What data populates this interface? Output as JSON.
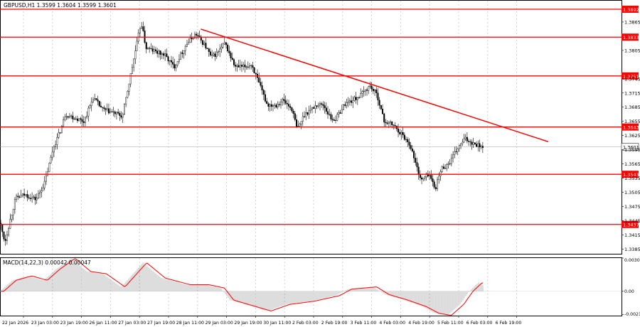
{
  "header": {
    "symbol_info": "GBPUSD,H1  1.3599 1.3604 1.3599 1.3601"
  },
  "colors": {
    "level_line": "#ff0000",
    "trend_line": "#ff0000",
    "candle": "#000000",
    "grid": "#c8c8c8",
    "macd_hist": "#b4b4b4",
    "macd_signal": "#ff0000",
    "price_tag": "#ff0000",
    "bid_tag": "#ffffff"
  },
  "chart_data": [
    {
      "type": "candlestick",
      "title": "",
      "ylim": [
        1.3375,
        1.391
      ],
      "y_ticks": [
        "1.3865",
        "1.3805",
        "1.3745",
        "1.3715",
        "1.3685",
        "1.3655",
        "1.3625",
        "1.3595",
        "1.3565",
        "1.3535",
        "1.3505",
        "1.3475",
        "1.3445",
        "1.3415",
        "1.3385"
      ],
      "x_labels": [
        "22 Jan 2026",
        "23 Jan 03:00",
        "23 Jan 19:00",
        "26 Jan 11:00",
        "27 Jan 03:00",
        "27 Jan 19:00",
        "28 Jan 11:00",
        "29 Jan 03:00",
        "29 Jan 19:00",
        "30 Jan 11:00",
        "2 Feb 03:00",
        "2 Feb 19:00",
        "3 Feb 11:00",
        "4 Feb 03:00",
        "4 Feb 19:00",
        "5 Feb 11:00",
        "6 Feb 03:00",
        "6 Feb 19:00"
      ],
      "levels": [
        {
          "value": 1.3892,
          "label": "1.3892"
        },
        {
          "value": 1.3833,
          "label": "1.3833"
        },
        {
          "value": 1.3751,
          "label": "1.3751"
        },
        {
          "value": 1.3643,
          "label": "1.3643"
        },
        {
          "value": 1.3543,
          "label": "1.3543"
        },
        {
          "value": 1.3437,
          "label": "1.3437"
        }
      ],
      "current_price": {
        "value": 1.3601,
        "label": "1.3601"
      },
      "trendline": {
        "start": [
          0.323,
          1.385
        ],
        "end": [
          0.882,
          1.3612
        ]
      },
      "path_anchors": [
        [
          0.0,
          1.344
        ],
        [
          0.008,
          1.34
        ],
        [
          0.016,
          1.3445
        ],
        [
          0.025,
          1.3492
        ],
        [
          0.04,
          1.35
        ],
        [
          0.058,
          1.349
        ],
        [
          0.072,
          1.3525
        ],
        [
          0.086,
          1.36
        ],
        [
          0.098,
          1.3638
        ],
        [
          0.105,
          1.367
        ],
        [
          0.125,
          1.366
        ],
        [
          0.135,
          1.3655
        ],
        [
          0.15,
          1.3705
        ],
        [
          0.165,
          1.368
        ],
        [
          0.185,
          1.3672
        ],
        [
          0.197,
          1.3665
        ],
        [
          0.215,
          1.3785
        ],
        [
          0.227,
          1.3865
        ],
        [
          0.235,
          1.381
        ],
        [
          0.255,
          1.38
        ],
        [
          0.265,
          1.3795
        ],
        [
          0.28,
          1.377
        ],
        [
          0.3,
          1.3818
        ],
        [
          0.315,
          1.384
        ],
        [
          0.33,
          1.3815
        ],
        [
          0.34,
          1.379
        ],
        [
          0.35,
          1.38
        ],
        [
          0.362,
          1.382
        ],
        [
          0.378,
          1.377
        ],
        [
          0.392,
          1.377
        ],
        [
          0.405,
          1.3775
        ],
        [
          0.418,
          1.373
        ],
        [
          0.43,
          1.369
        ],
        [
          0.445,
          1.369
        ],
        [
          0.455,
          1.37
        ],
        [
          0.47,
          1.368
        ],
        [
          0.478,
          1.3638
        ],
        [
          0.49,
          1.367
        ],
        [
          0.51,
          1.369
        ],
        [
          0.52,
          1.369
        ],
        [
          0.533,
          1.366
        ],
        [
          0.54,
          1.366
        ],
        [
          0.555,
          1.3692
        ],
        [
          0.568,
          1.37
        ],
        [
          0.58,
          1.371
        ],
        [
          0.595,
          1.373
        ],
        [
          0.607,
          1.371
        ],
        [
          0.618,
          1.3655
        ],
        [
          0.632,
          1.3648
        ],
        [
          0.645,
          1.363
        ],
        [
          0.66,
          1.3605
        ],
        [
          0.67,
          1.356
        ],
        [
          0.678,
          1.353
        ],
        [
          0.69,
          1.3545
        ],
        [
          0.7,
          1.3512
        ],
        [
          0.71,
          1.3555
        ],
        [
          0.722,
          1.3565
        ],
        [
          0.735,
          1.3595
        ],
        [
          0.748,
          1.3618
        ],
        [
          0.76,
          1.361
        ],
        [
          0.772,
          1.3604
        ],
        [
          0.778,
          1.3601
        ]
      ]
    },
    {
      "type": "histogram",
      "title": "MACD(14,22,3) 0.00042 0.00047",
      "ylim": [
        -0.00222,
        0.00303
      ],
      "y_ticks": [
        {
          "value": 0.00303,
          "label": "0.00303"
        },
        {
          "value": 0.0,
          "label": "0.00"
        },
        {
          "value": -0.00211,
          "label": "-0.00211"
        }
      ],
      "path_anchors": [
        [
          0.0,
          0.0
        ],
        [
          0.02,
          0.001
        ],
        [
          0.045,
          0.0014
        ],
        [
          0.07,
          0.001
        ],
        [
          0.09,
          0.002
        ],
        [
          0.115,
          0.003
        ],
        [
          0.14,
          0.0018
        ],
        [
          0.165,
          0.0016
        ],
        [
          0.195,
          0.0004
        ],
        [
          0.23,
          0.0026
        ],
        [
          0.26,
          0.0012
        ],
        [
          0.3,
          0.0006
        ],
        [
          0.33,
          0.0006
        ],
        [
          0.355,
          0.0003
        ],
        [
          0.37,
          -0.0008
        ],
        [
          0.4,
          -0.0013
        ],
        [
          0.43,
          -0.0018
        ],
        [
          0.46,
          -0.0012
        ],
        [
          0.5,
          -0.0009
        ],
        [
          0.54,
          -0.0004
        ],
        [
          0.56,
          0.0002
        ],
        [
          0.6,
          0.0004
        ],
        [
          0.62,
          -0.0003
        ],
        [
          0.65,
          -0.0008
        ],
        [
          0.68,
          -0.0014
        ],
        [
          0.7,
          -0.002
        ],
        [
          0.72,
          -0.0022
        ],
        [
          0.74,
          -0.0012
        ],
        [
          0.755,
          0.0
        ],
        [
          0.77,
          0.0008
        ],
        [
          0.778,
          0.0005
        ]
      ]
    }
  ]
}
